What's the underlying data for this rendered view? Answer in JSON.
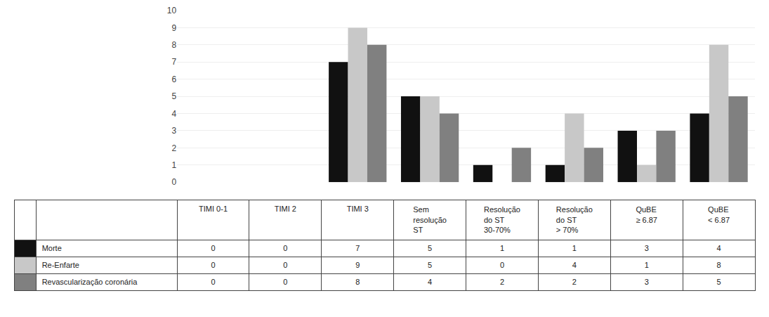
{
  "chart_data": {
    "type": "bar",
    "categories": [
      "TIMI 0-1",
      "TIMI 2",
      "TIMI 3",
      "Sem\nresolução\nST",
      "Resolução\ndo ST\n30-70%",
      "Resolução\ndo ST\n> 70%",
      "QuBE\n≥ 6.87",
      "QuBE\n< 6.87"
    ],
    "series": [
      {
        "name": "Morte",
        "color": "#111111",
        "values": [
          0,
          0,
          7,
          5,
          1,
          1,
          3,
          4
        ]
      },
      {
        "name": "Re-Enfarte",
        "color": "#c8c8c8",
        "values": [
          0,
          0,
          9,
          5,
          0,
          4,
          1,
          8
        ]
      },
      {
        "name": "Revascularização coronária",
        "color": "#808080",
        "values": [
          0,
          0,
          8,
          4,
          2,
          2,
          3,
          5
        ]
      }
    ],
    "ylim": [
      0,
      10
    ],
    "yticks": [
      0,
      1,
      2,
      3,
      4,
      5,
      6,
      7,
      8,
      9,
      10
    ],
    "grid": true,
    "data_labels": true,
    "tick_labels": "y"
  }
}
